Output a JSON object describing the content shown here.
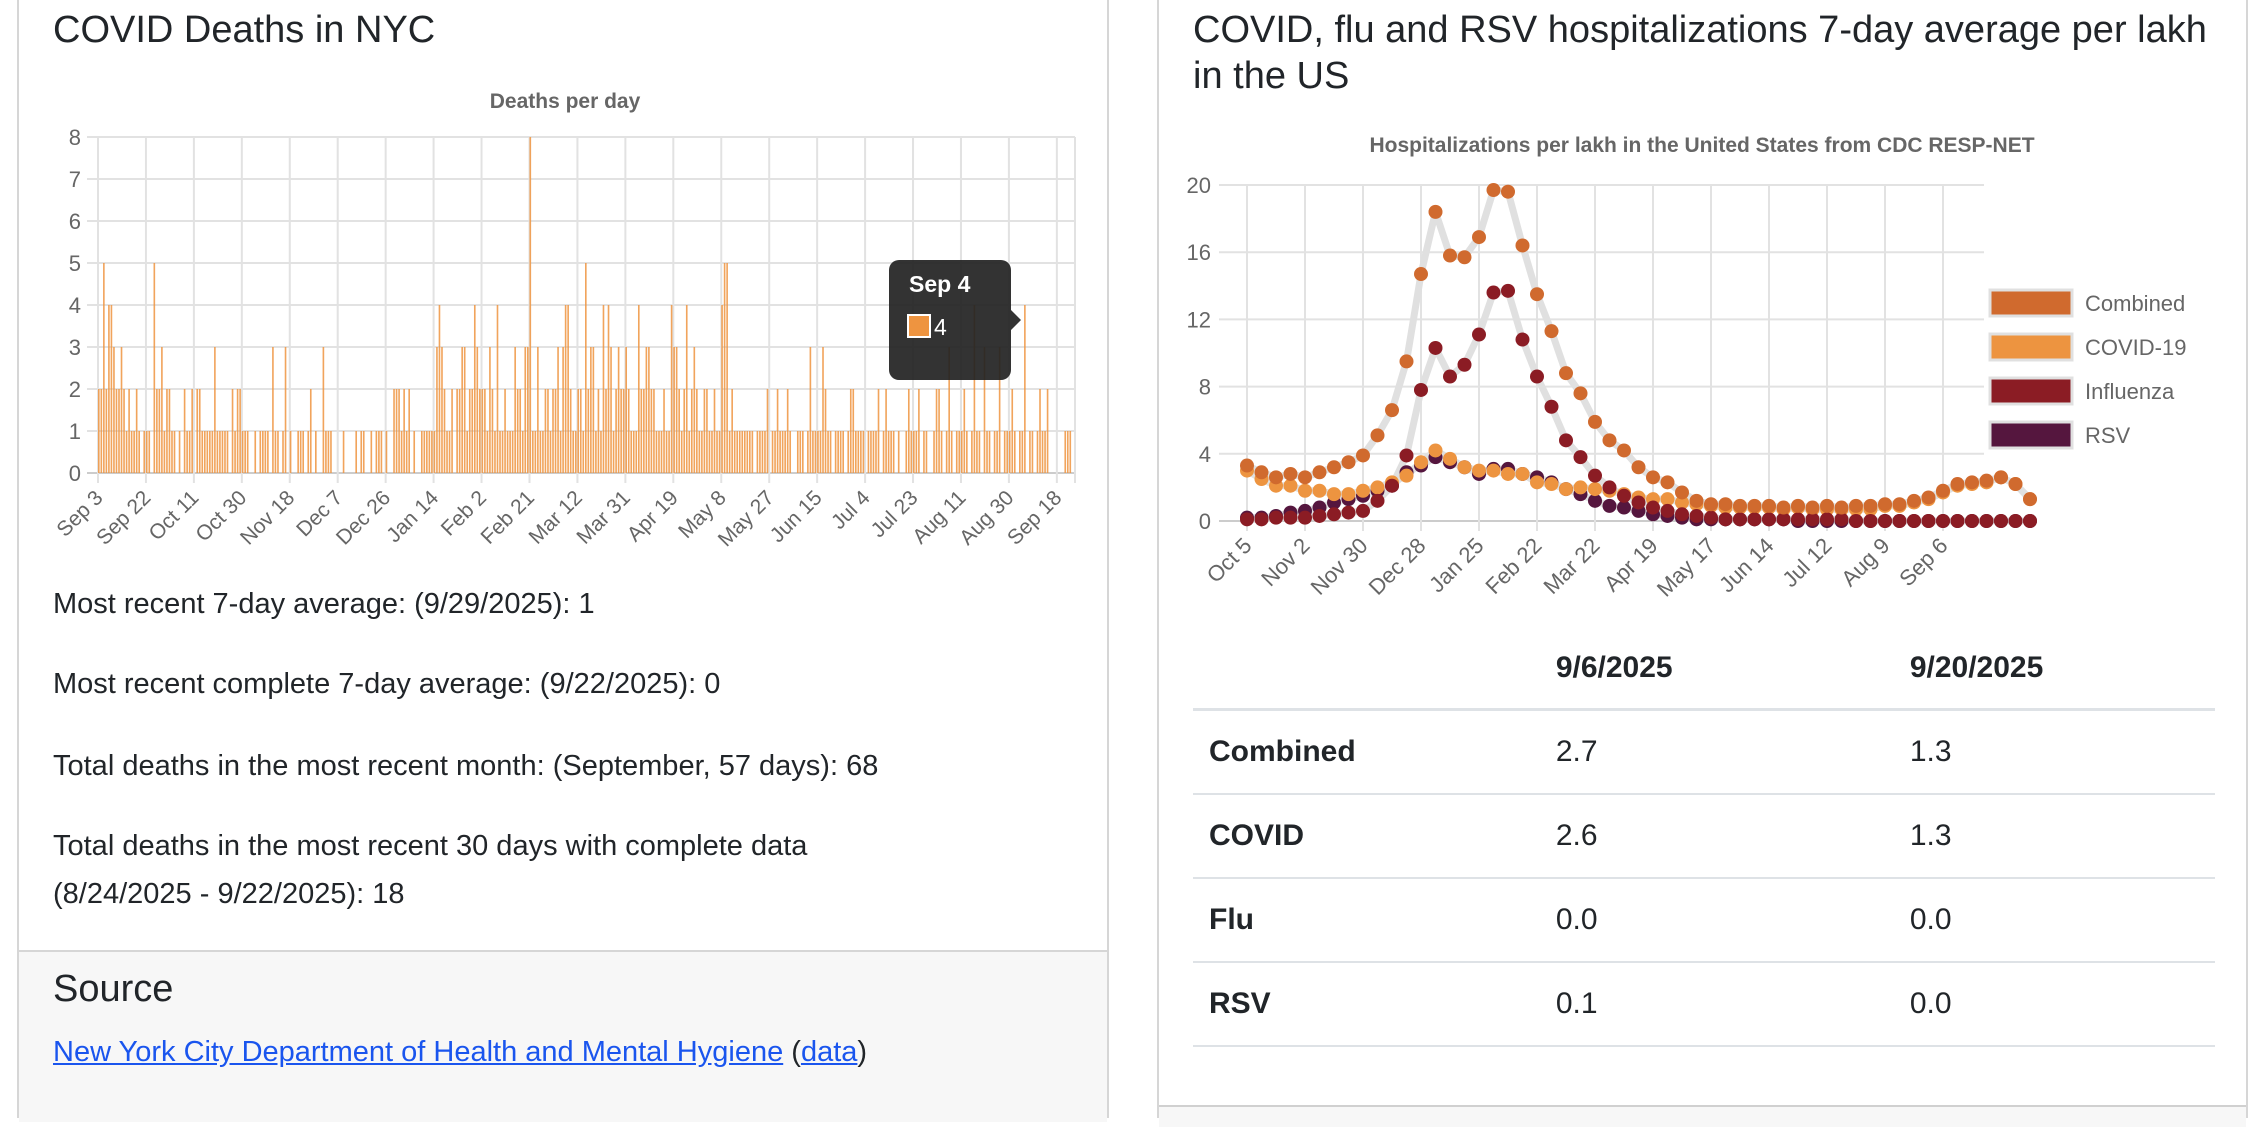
{
  "left_card": {
    "title": "COVID Deaths in NYC",
    "stats": [
      "Most recent 7-day average: (9/29/2025): 1",
      "Most recent complete 7-day average: (9/22/2025): 0",
      "Total deaths in the most recent month: (September, 57 days): 68",
      "Total deaths in the most recent 30 days with complete data",
      "(8/24/2025 - 9/22/2025): 18"
    ],
    "source_heading": "Source",
    "source_link": "New York City Department of Health and Mental Hygiene",
    "source_open_paren": "(",
    "source_data_link": "data",
    "source_close_paren": ")"
  },
  "right_card": {
    "title": "COVID, flu and RSV hospitalizations 7-day average per lakh in the US",
    "table": {
      "headers": [
        "",
        "9/6/2025",
        "9/20/2025"
      ],
      "rows": [
        [
          "Combined",
          "2.7",
          "1.3"
        ],
        [
          "COVID",
          "2.6",
          "1.3"
        ],
        [
          "Flu",
          "0.0",
          "0.0"
        ],
        [
          "RSV",
          "0.1",
          "0.0"
        ]
      ]
    }
  },
  "chart_data": [
    {
      "type": "bar",
      "title": "Deaths per day",
      "xlabel": "",
      "ylabel": "",
      "ylim": [
        0,
        8
      ],
      "yticks": [
        0,
        1,
        2,
        3,
        4,
        5,
        6,
        7,
        8
      ],
      "grid": true,
      "color": "#ee9440",
      "start_date": "Sep 3",
      "x_tick_labels": [
        "Sep 3",
        "Sep 22",
        "Oct 11",
        "Oct 30",
        "Nov 18",
        "Dec 7",
        "Dec 26",
        "Jan 14",
        "Feb 2",
        "Feb 21",
        "Mar 12",
        "Mar 31",
        "Apr 19",
        "May 8",
        "May 27",
        "Jun 15",
        "Jul 4",
        "Jul 23",
        "Aug 11",
        "Aug 30",
        "Sep 18"
      ],
      "values": [
        2,
        2,
        5,
        2,
        4,
        4,
        3,
        2,
        2,
        3,
        2,
        1,
        2,
        1,
        1,
        2,
        1,
        0,
        1,
        1,
        1,
        0,
        5,
        2,
        2,
        3,
        1,
        2,
        2,
        1,
        1,
        0,
        1,
        0,
        2,
        1,
        1,
        2,
        0,
        2,
        2,
        1,
        1,
        1,
        1,
        1,
        3,
        1,
        1,
        1,
        1,
        1,
        0,
        2,
        1,
        2,
        2,
        1,
        1,
        1,
        0,
        0,
        1,
        0,
        1,
        1,
        1,
        1,
        0,
        3,
        1,
        1,
        0,
        1,
        3,
        0,
        1,
        0,
        0,
        1,
        1,
        1,
        0,
        1,
        2,
        0,
        1,
        0,
        0,
        3,
        1,
        1,
        1,
        0,
        0,
        0,
        0,
        1,
        0,
        0,
        0,
        0,
        1,
        0,
        1,
        1,
        0,
        0,
        1,
        0,
        1,
        1,
        1,
        0,
        1,
        0,
        0,
        2,
        2,
        2,
        1,
        2,
        1,
        2,
        0,
        1,
        0,
        0,
        1,
        1,
        1,
        1,
        1,
        1,
        3,
        4,
        3,
        2,
        1,
        1,
        2,
        0,
        2,
        2,
        3,
        3,
        1,
        2,
        2,
        4,
        3,
        2,
        2,
        2,
        1,
        3,
        2,
        1,
        4,
        1,
        1,
        2,
        1,
        1,
        1,
        3,
        2,
        2,
        1,
        3,
        3,
        8,
        1,
        1,
        3,
        1,
        1,
        2,
        2,
        1,
        2,
        2,
        3,
        1,
        3,
        4,
        4,
        2,
        1,
        1,
        2,
        2,
        1,
        5,
        2,
        3,
        3,
        1,
        2,
        1,
        4,
        2,
        4,
        3,
        1,
        2,
        3,
        2,
        2,
        3,
        2,
        1,
        1,
        1,
        4,
        2,
        2,
        3,
        3,
        2,
        2,
        1,
        1,
        1,
        2,
        1,
        1,
        4,
        3,
        3,
        2,
        1,
        2,
        4,
        1,
        2,
        3,
        2,
        1,
        1,
        2,
        2,
        1,
        1,
        2,
        1,
        1,
        4,
        5,
        5,
        1,
        2,
        1,
        1,
        1,
        1,
        1,
        1,
        1,
        1,
        0,
        1,
        1,
        1,
        1,
        2,
        0,
        1,
        1,
        2,
        1,
        1,
        1,
        2,
        1,
        0,
        0,
        1,
        1,
        1,
        0,
        1,
        3,
        1,
        1,
        1,
        1,
        3,
        2,
        1,
        1,
        0,
        1,
        1,
        1,
        1,
        0,
        1,
        2,
        2,
        1,
        1,
        1,
        1,
        0,
        1,
        1,
        1,
        1,
        2,
        0,
        1,
        2,
        1,
        1,
        1,
        0,
        1,
        0,
        0,
        1,
        2,
        1,
        1,
        1,
        2,
        0,
        1,
        1,
        0,
        0,
        1,
        2,
        2,
        1,
        0,
        1,
        3,
        1,
        0,
        1,
        1,
        1,
        2,
        1,
        0,
        1,
        4,
        1,
        1,
        0,
        3,
        1,
        1,
        0,
        1,
        1,
        3,
        0,
        1,
        1,
        1,
        2,
        1,
        0,
        1,
        1,
        4,
        0,
        1,
        1,
        0,
        1,
        2,
        1,
        1,
        2,
        0,
        0,
        0,
        0,
        0,
        0,
        1,
        1,
        1
      ],
      "tooltip": {
        "label": "Sep 4",
        "value": "4"
      }
    },
    {
      "type": "line",
      "title": "Hospitalizations per lakh in the United States from CDC RESP-NET",
      "xlabel": "",
      "ylabel": "",
      "ylim": [
        0,
        20
      ],
      "yticks": [
        0,
        4,
        8,
        12,
        16,
        20
      ],
      "grid": true,
      "legend_position": "right",
      "x_tick_labels": [
        "Oct 5",
        "Nov 2",
        "Nov 30",
        "Dec 28",
        "Jan 25",
        "Feb 22",
        "Mar 22",
        "Apr 19",
        "May 17",
        "Jun 14",
        "Jul 12",
        "Aug 9",
        "Sep 6"
      ],
      "x_tick_every": 4,
      "series": [
        {
          "name": "Combined",
          "color": "#d06a2e",
          "values": [
            3.3,
            2.9,
            2.6,
            2.8,
            2.6,
            2.9,
            3.2,
            3.5,
            3.9,
            5.1,
            6.6,
            9.5,
            14.7,
            18.4,
            15.8,
            15.7,
            16.9,
            19.7,
            19.6,
            16.4,
            13.5,
            11.3,
            8.8,
            7.6,
            5.9,
            4.8,
            4.2,
            3.2,
            2.6,
            2.3,
            1.7,
            1.2,
            1.0,
            1.0,
            0.9,
            0.9,
            0.9,
            0.8,
            0.9,
            0.8,
            0.9,
            0.8,
            0.9,
            0.9,
            1.0,
            1.0,
            1.2,
            1.4,
            1.8,
            2.2,
            2.3,
            2.4,
            2.6,
            2.2,
            1.3
          ]
        },
        {
          "name": "COVID-19",
          "color": "#ed9440",
          "values": [
            3.0,
            2.5,
            2.1,
            2.1,
            1.8,
            1.8,
            1.6,
            1.6,
            1.8,
            2.0,
            2.3,
            2.7,
            3.5,
            4.2,
            3.7,
            3.2,
            3.0,
            3.0,
            2.8,
            2.8,
            2.3,
            2.2,
            1.9,
            2.0,
            1.9,
            1.8,
            1.6,
            1.4,
            1.3,
            1.3,
            1.1,
            1.0,
            0.9,
            0.8,
            0.8,
            0.8,
            0.8,
            0.7,
            0.8,
            0.7,
            0.7,
            0.7,
            0.7,
            0.7,
            0.9,
            0.9,
            1.1,
            1.3,
            1.7,
            2.1,
            2.2,
            2.3,
            2.6,
            2.2,
            1.3
          ]
        },
        {
          "name": "Influenza",
          "color": "#8b1c24",
          "values": [
            0.1,
            0.1,
            0.2,
            0.2,
            0.2,
            0.3,
            0.4,
            0.5,
            0.6,
            1.2,
            2.1,
            3.9,
            7.8,
            10.3,
            8.6,
            9.3,
            11.1,
            13.6,
            13.7,
            10.8,
            8.6,
            6.8,
            4.8,
            3.8,
            2.7,
            2.0,
            1.5,
            1.1,
            0.8,
            0.6,
            0.4,
            0.3,
            0.2,
            0.1,
            0.1,
            0.1,
            0.1,
            0.1,
            0.1,
            0.1,
            0.1,
            0.1,
            0.0,
            0.0,
            0.0,
            0.0,
            0.0,
            0.0,
            0.0,
            0.0,
            0.0,
            0.0,
            0.0,
            0.0,
            0.0
          ]
        },
        {
          "name": "RSV",
          "color": "#55163e",
          "values": [
            0.2,
            0.2,
            0.3,
            0.5,
            0.6,
            0.8,
            1.1,
            1.3,
            1.5,
            1.8,
            2.1,
            2.9,
            3.3,
            3.8,
            3.5,
            3.2,
            2.8,
            3.1,
            3.1,
            2.8,
            2.6,
            2.3,
            1.9,
            1.6,
            1.2,
            0.9,
            0.8,
            0.6,
            0.4,
            0.3,
            0.2,
            0.1,
            0.1,
            0.1,
            0.1,
            0.1,
            0.1,
            0.1,
            0.0,
            0.0,
            0.0,
            0.0,
            0.0,
            0.0,
            0.0,
            0.0,
            0.0,
            0.0,
            0.0,
            0.0,
            0.0,
            0.0,
            0.0,
            0.0,
            0.0
          ]
        }
      ]
    }
  ]
}
